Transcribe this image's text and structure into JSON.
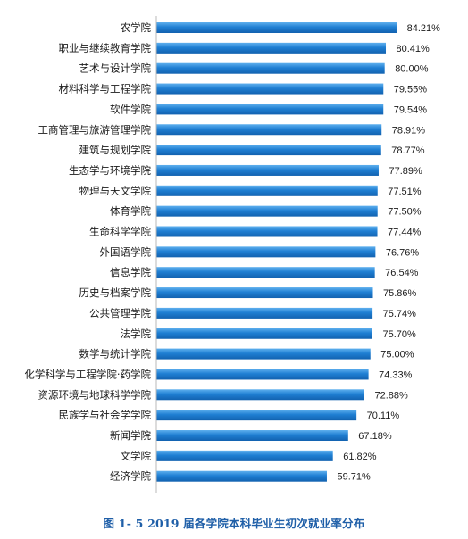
{
  "caption": "图 1- 5   2019 届各学院本科毕业生初次就业率分布",
  "colors": {
    "bar_top": "#5fb0ee",
    "bar_mid": "#1f7fd3",
    "bar_bottom": "#1262b0",
    "axis": "#b8b8b8",
    "caption": "#1f5fa8"
  },
  "chart_data": {
    "type": "bar",
    "orientation": "horizontal",
    "unit": "%",
    "xlim": [
      0,
      90
    ],
    "grid": false,
    "categories": [
      "农学院",
      "职业与继续教育学院",
      "艺术与设计学院",
      "材料科学与工程学院",
      "软件学院",
      "工商管理与旅游管理学院",
      "建筑与规划学院",
      "生态学与环境学院",
      "物理与天文学院",
      "体育学院",
      "生命科学学院",
      "外国语学院",
      "信息学院",
      "历史与档案学院",
      "公共管理学院",
      "法学院",
      "数学与统计学院",
      "化学科学与工程学院·药学院",
      "资源环境与地球科学学院",
      "民族学与社会学学院",
      "新闻学院",
      "文学院",
      "经济学院"
    ],
    "values": [
      84.21,
      80.41,
      80.0,
      79.55,
      79.54,
      78.91,
      78.77,
      77.89,
      77.51,
      77.5,
      77.44,
      76.76,
      76.54,
      75.86,
      75.74,
      75.7,
      75.0,
      74.33,
      72.88,
      70.11,
      67.18,
      61.82,
      59.71
    ],
    "value_labels": [
      "84.21%",
      "80.41%",
      "80.00%",
      "79.55%",
      "79.54%",
      "78.91%",
      "78.77%",
      "77.89%",
      "77.51%",
      "77.50%",
      "77.44%",
      "76.76%",
      "76.54%",
      "75.86%",
      "75.74%",
      "75.70%",
      "75.00%",
      "74.33%",
      "72.88%",
      "70.11%",
      "67.18%",
      "61.82%",
      "59.71%"
    ]
  }
}
